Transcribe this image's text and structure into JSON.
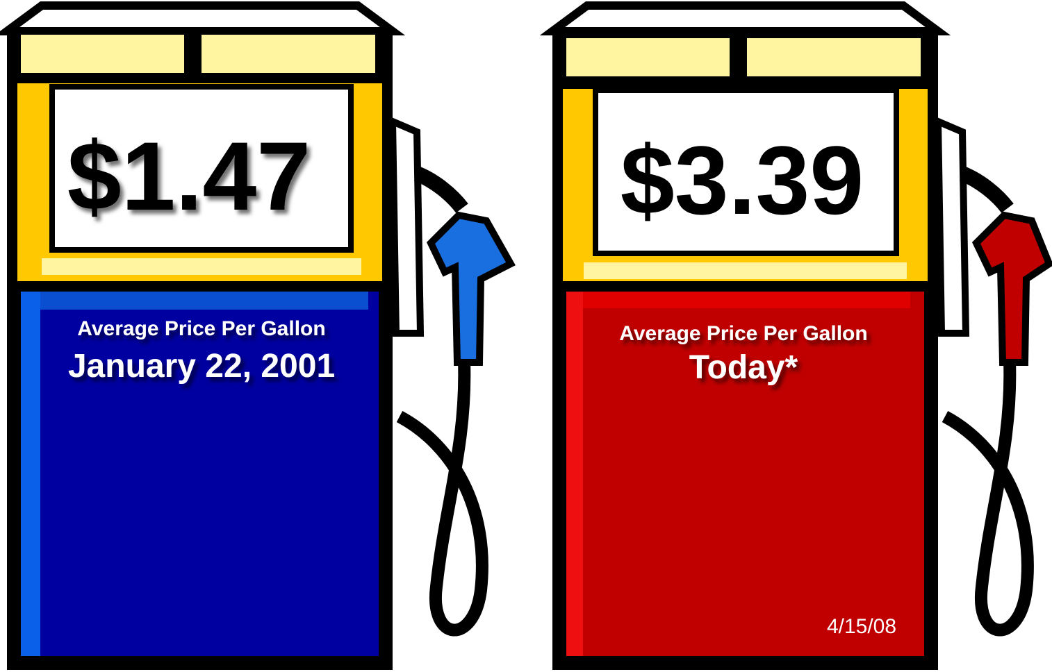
{
  "pumps": [
    {
      "price": "$1.47",
      "caption": "Average Price Per Gallon",
      "date": "January 22, 2001"
    },
    {
      "price": "$3.39",
      "caption": "Average Price Per Gallon",
      "date": "Today*",
      "footnote": "4/15/08"
    }
  ]
}
